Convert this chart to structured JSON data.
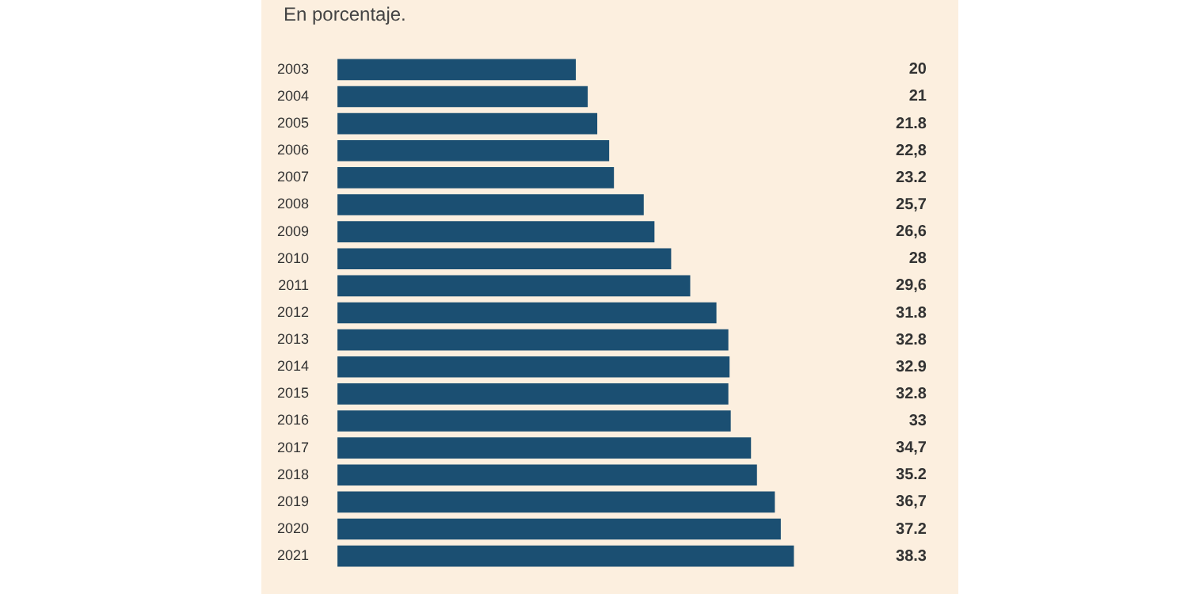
{
  "chart_data": {
    "type": "bar",
    "orientation": "horizontal",
    "subtitle": "En porcentaje.",
    "categories": [
      "2003",
      "2004",
      "2005",
      "2006",
      "2007",
      "2008",
      "2009",
      "2010",
      "2011",
      "2012",
      "2013",
      "2014",
      "2015",
      "2016",
      "2017",
      "2018",
      "2019",
      "2020",
      "2021"
    ],
    "values": [
      20,
      21,
      21.8,
      22.8,
      23.2,
      25.7,
      26.6,
      28,
      29.6,
      31.8,
      32.8,
      32.9,
      32.8,
      33,
      34.7,
      35.2,
      36.7,
      37.2,
      38.3
    ],
    "value_labels": [
      "20",
      "21",
      "21.8",
      "22,8",
      "23.2",
      "25,7",
      "26,6",
      "28",
      "29,6",
      "31.8",
      "32.8",
      "32.9",
      "32.8",
      "33",
      "34,7",
      "35.2",
      "36,7",
      "37.2",
      "38.3"
    ],
    "color": "#1b4f72",
    "grid": false,
    "legend": false
  }
}
